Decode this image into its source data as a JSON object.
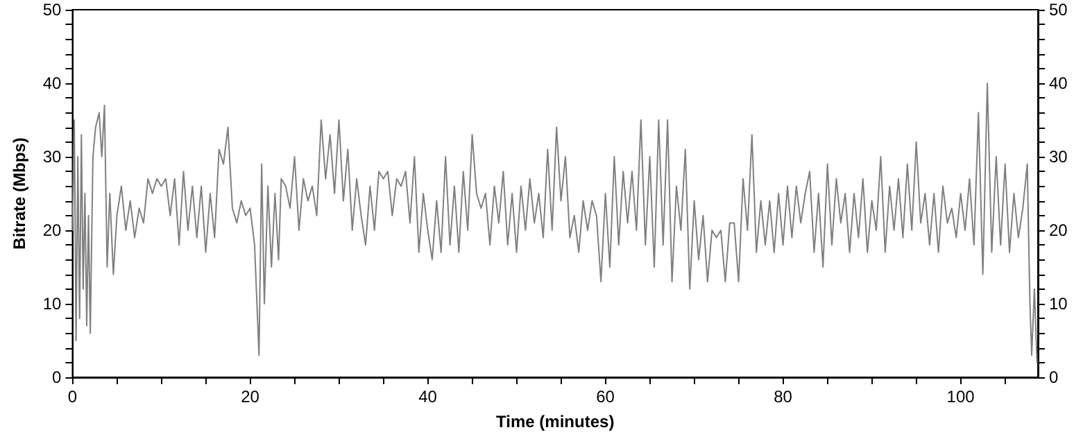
{
  "chart_data": {
    "type": "line",
    "xlabel": "Time (minutes)",
    "ylabel": "Bitrate (Mbps)",
    "xlim": [
      0,
      108.7
    ],
    "ylim": [
      0,
      50
    ],
    "y2lim": [
      0,
      50
    ],
    "xticks": [
      0,
      {
        "value": 5,
        "label": null
      },
      {
        "value": 10,
        "label": null
      },
      {
        "value": 15,
        "label": null
      },
      20,
      {
        "value": 25,
        "label": null
      },
      {
        "value": 30,
        "label": null
      },
      {
        "value": 35,
        "label": null
      },
      40,
      {
        "value": 45,
        "label": null
      },
      {
        "value": 50,
        "label": null
      },
      {
        "value": 55,
        "label": null
      },
      60,
      {
        "value": 65,
        "label": null
      },
      {
        "value": 70,
        "label": null
      },
      {
        "value": 75,
        "label": null
      },
      80,
      {
        "value": 85,
        "label": null
      },
      {
        "value": 90,
        "label": null
      },
      {
        "value": 95,
        "label": null
      },
      100,
      {
        "value": 105,
        "label": null
      }
    ],
    "yticks": [
      0,
      {
        "value": 2,
        "label": null
      },
      {
        "value": 4,
        "label": null
      },
      {
        "value": 6,
        "label": null
      },
      {
        "value": 8,
        "label": null
      },
      10,
      {
        "value": 12,
        "label": null
      },
      {
        "value": 14,
        "label": null
      },
      {
        "value": 16,
        "label": null
      },
      {
        "value": 18,
        "label": null
      },
      20,
      {
        "value": 22,
        "label": null
      },
      {
        "value": 24,
        "label": null
      },
      {
        "value": 26,
        "label": null
      },
      {
        "value": 28,
        "label": null
      },
      30,
      {
        "value": 32,
        "label": null
      },
      {
        "value": 34,
        "label": null
      },
      {
        "value": 36,
        "label": null
      },
      {
        "value": 38,
        "label": null
      },
      40,
      {
        "value": 42,
        "label": null
      },
      {
        "value": 44,
        "label": null
      },
      {
        "value": 46,
        "label": null
      },
      {
        "value": 48,
        "label": null
      },
      50
    ],
    "y2ticks": [
      0,
      {
        "value": 2,
        "label": null
      },
      {
        "value": 4,
        "label": null
      },
      {
        "value": 6,
        "label": null
      },
      {
        "value": 8,
        "label": null
      },
      10,
      {
        "value": 12,
        "label": null
      },
      {
        "value": 14,
        "label": null
      },
      {
        "value": 16,
        "label": null
      },
      {
        "value": 18,
        "label": null
      },
      20,
      {
        "value": 22,
        "label": null
      },
      {
        "value": 24,
        "label": null
      },
      {
        "value": 26,
        "label": null
      },
      {
        "value": 28,
        "label": null
      },
      30,
      {
        "value": 32,
        "label": null
      },
      {
        "value": 34,
        "label": null
      },
      {
        "value": 36,
        "label": null
      },
      {
        "value": 38,
        "label": null
      },
      40,
      {
        "value": 42,
        "label": null
      },
      {
        "value": 44,
        "label": null
      },
      {
        "value": 46,
        "label": null
      },
      {
        "value": 48,
        "label": null
      },
      50
    ],
    "grid": false,
    "marker": "none",
    "line_style": "solid",
    "x": [
      0,
      0.2,
      0.4,
      0.6,
      0.8,
      1.0,
      1.2,
      1.4,
      1.6,
      1.8,
      2.0,
      2.3,
      2.6,
      3.0,
      3.3,
      3.6,
      3.9,
      4.2,
      4.6,
      5.0,
      5.5,
      6,
      6.5,
      7,
      7.5,
      8,
      8.5,
      9,
      9.5,
      10,
      10.5,
      11,
      11.5,
      12,
      12.5,
      13,
      13.5,
      14,
      14.5,
      15,
      15.5,
      16,
      16.5,
      17,
      17.5,
      18,
      18.5,
      19,
      19.5,
      20,
      20.5,
      21,
      21.3,
      21.6,
      22,
      22.4,
      22.8,
      23.2,
      23.5,
      24,
      24.5,
      25,
      25.5,
      26,
      26.5,
      27,
      27.5,
      28,
      28.5,
      29,
      29.5,
      30,
      30.5,
      31,
      31.5,
      32,
      32.5,
      33,
      33.5,
      34,
      34.5,
      35,
      35.5,
      36,
      36.5,
      37,
      37.5,
      38,
      38.5,
      39,
      39.5,
      40,
      40.5,
      41,
      41.5,
      42,
      42.5,
      43,
      43.5,
      44,
      44.5,
      45,
      45.5,
      46,
      46.5,
      47,
      47.5,
      48,
      48.5,
      49,
      49.5,
      50,
      50.5,
      51,
      51.5,
      52,
      52.5,
      53,
      53.5,
      54,
      54.5,
      55,
      55.5,
      56,
      56.5,
      57,
      57.5,
      58,
      58.5,
      59,
      59.5,
      60,
      60.5,
      61,
      61.5,
      62,
      62.5,
      63,
      63.5,
      64,
      64.5,
      65,
      65.5,
      66,
      66.5,
      67,
      67.5,
      68,
      68.5,
      69,
      69.5,
      70,
      70.5,
      71,
      71.5,
      72,
      72.5,
      73,
      73.5,
      74,
      74.5,
      75,
      75.5,
      76,
      76.5,
      77,
      77.5,
      78,
      78.5,
      79,
      79.5,
      80,
      80.5,
      81,
      81.5,
      82,
      82.5,
      83,
      83.5,
      84,
      84.5,
      85,
      85.5,
      86,
      86.5,
      87,
      87.5,
      88,
      88.5,
      89,
      89.5,
      90,
      90.5,
      91,
      91.5,
      92,
      92.5,
      93,
      93.5,
      94,
      94.5,
      95,
      95.5,
      96,
      96.5,
      97,
      97.5,
      98,
      98.5,
      99,
      99.5,
      100,
      100.5,
      101,
      101.5,
      102,
      102.5,
      103,
      103.5,
      104,
      104.5,
      105,
      105.5,
      106,
      106.5,
      107,
      107.5,
      107.8,
      108,
      108.3,
      108.6
    ],
    "series": [
      {
        "color": "#808080",
        "values": [
          20,
          35,
          5,
          30,
          8,
          33,
          12,
          25,
          7,
          22,
          6,
          30,
          34,
          36,
          30,
          37,
          15,
          25,
          14,
          22,
          26,
          20,
          24,
          19,
          23,
          21,
          27,
          25,
          27,
          26,
          27,
          22,
          27,
          18,
          28,
          20,
          26,
          19,
          26,
          17,
          25,
          19,
          31,
          29,
          34,
          23,
          21,
          24,
          22,
          23,
          18,
          3,
          29,
          10,
          26,
          15,
          25,
          16,
          27,
          26,
          23,
          30,
          20,
          27,
          24,
          26,
          22,
          35,
          27,
          33,
          25,
          35,
          24,
          31,
          20,
          27,
          22,
          18,
          26,
          20,
          28,
          27,
          28,
          22,
          27,
          26,
          28,
          21,
          30,
          17,
          25,
          20,
          16,
          24,
          17,
          30,
          18,
          26,
          17,
          28,
          20,
          33,
          25,
          23,
          25,
          18,
          26,
          21,
          28,
          18,
          25,
          17,
          26,
          20,
          27,
          21,
          25,
          19,
          31,
          20,
          34,
          24,
          30,
          19,
          22,
          17,
          24,
          20,
          24,
          22,
          13,
          25,
          15,
          30,
          18,
          28,
          21,
          28,
          20,
          35,
          18,
          30,
          15,
          35,
          18,
          35,
          13,
          26,
          20,
          31,
          12,
          24,
          16,
          22,
          13,
          20,
          19,
          20,
          13,
          21,
          21,
          13,
          27,
          20,
          33,
          17,
          24,
          18,
          24,
          17,
          25,
          18,
          26,
          19,
          26,
          21,
          25,
          28,
          17,
          25,
          15,
          29,
          18,
          27,
          21,
          25,
          17,
          25,
          19,
          27,
          17,
          24,
          20,
          30,
          17,
          26,
          20,
          27,
          19,
          29,
          20,
          32,
          21,
          25,
          18,
          25,
          17,
          26,
          21,
          23,
          19,
          25,
          20,
          27,
          18,
          36,
          14,
          40,
          17,
          30,
          18,
          29,
          17,
          25,
          19,
          23,
          29,
          10,
          3,
          12,
          2
        ]
      }
    ]
  }
}
